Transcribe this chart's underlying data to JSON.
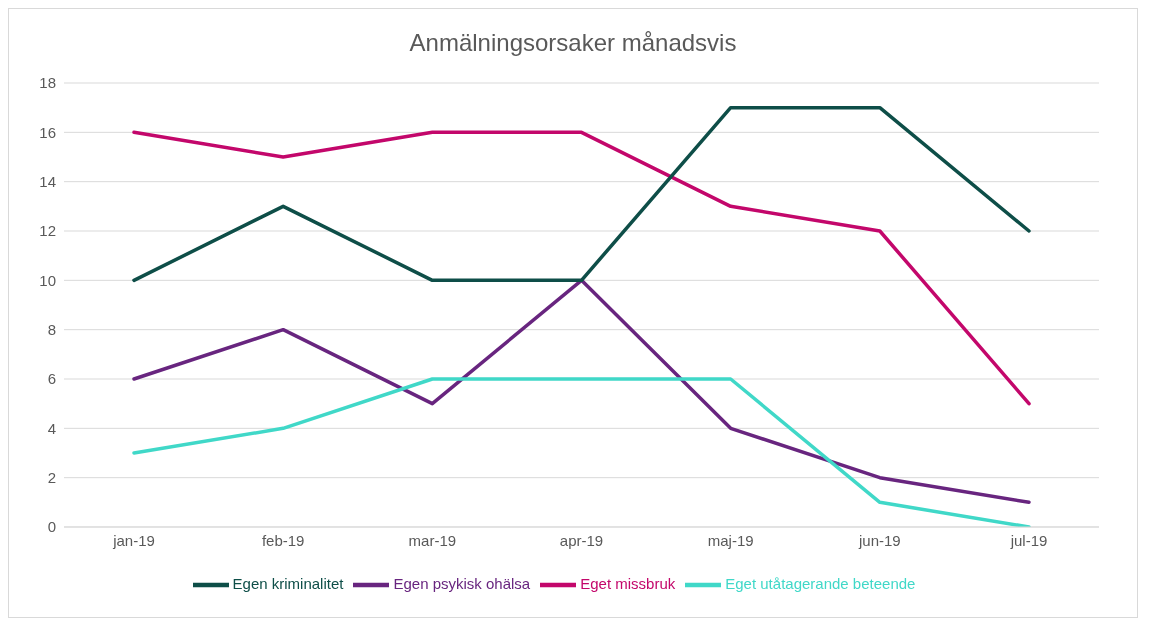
{
  "chart_data": {
    "type": "line",
    "title": "Anmälningsorsaker månadsvis",
    "categories": [
      "jan-19",
      "feb-19",
      "mar-19",
      "apr-19",
      "maj-19",
      "jun-19",
      "jul-19"
    ],
    "series": [
      {
        "name": "Egen psykisk ohälsa",
        "color": "#68257f",
        "values": [
          6,
          8,
          5,
          10,
          4,
          2,
          1
        ]
      },
      {
        "name": "Eget missbruk",
        "color": "#c3076b",
        "values": [
          16,
          15,
          16,
          16,
          13,
          12,
          5
        ]
      },
      {
        "name": "Egen kriminalitet",
        "color": "#0e4e48",
        "values": [
          10,
          13,
          10,
          10,
          17,
          17,
          12
        ]
      },
      {
        "name": "Eget utåtagerande beteende",
        "color": "#40d8c8",
        "values": [
          3,
          4,
          6,
          6,
          6,
          1,
          0
        ]
      }
    ],
    "ylim": [
      0,
      18
    ],
    "yticks": [
      0,
      2,
      4,
      6,
      8,
      10,
      12,
      14,
      16,
      18
    ],
    "grid": "y",
    "legend": "bottom",
    "marker": "none",
    "line_style": "solid"
  }
}
